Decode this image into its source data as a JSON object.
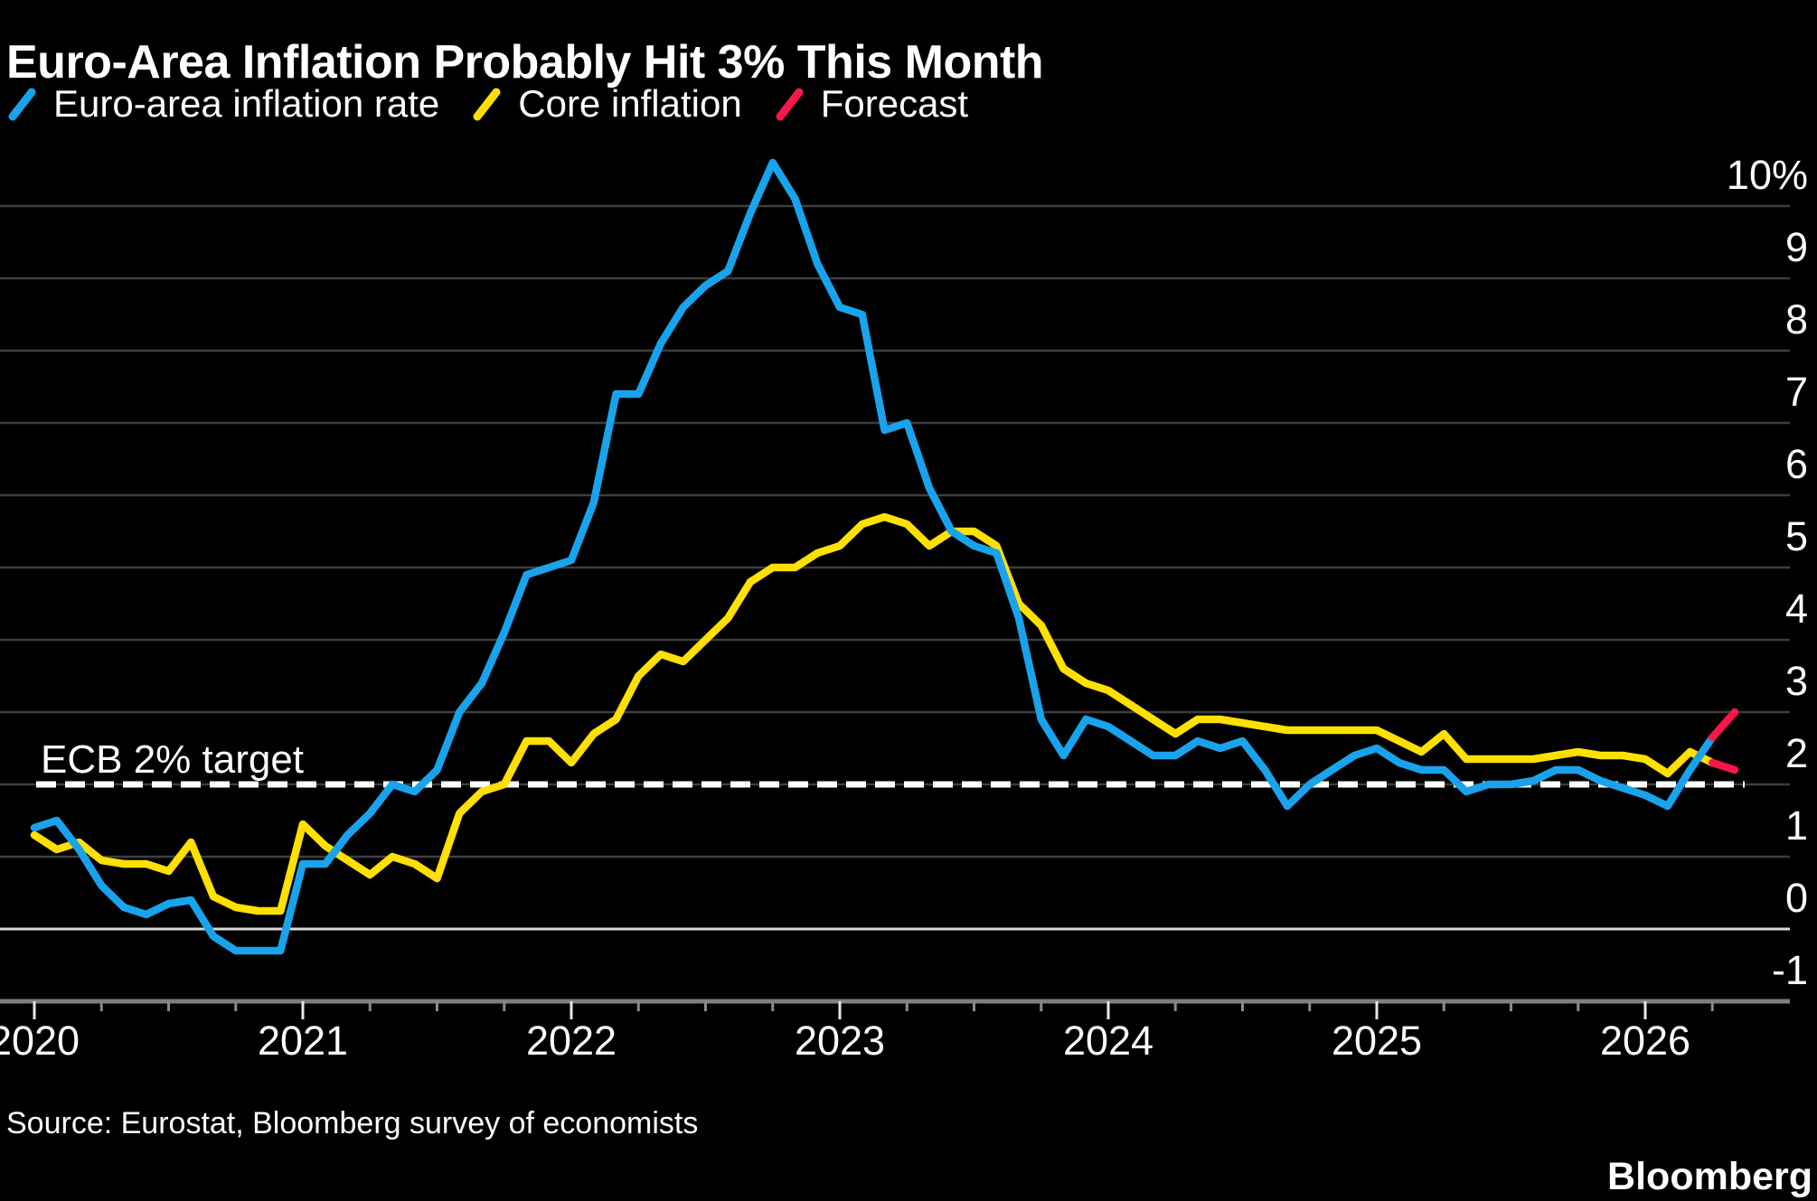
{
  "title": "Euro-Area Inflation Probably Hit 3% This Month",
  "legend": {
    "items": [
      {
        "label": "Euro-area inflation rate",
        "color": "#18a3ec"
      },
      {
        "label": "Core inflation",
        "color": "#ffe000"
      },
      {
        "label": "Forecast",
        "color": "#fa1647"
      }
    ]
  },
  "annotation": {
    "target_label": "ECB 2% target"
  },
  "source_note": "Source: Eurostat, Bloomberg survey of economists",
  "brand": "Bloomberg",
  "colors": {
    "background": "#000000",
    "headline_line": "#18a3ec",
    "core_line": "#ffe000",
    "forecast_line": "#fa1647",
    "gridline": "#3e3e3e",
    "zero_line": "#d9d9d9",
    "axis_line": "#7f7f7f",
    "target_dash": "#ffffff",
    "major_tick": "#e8e8e8",
    "minor_tick": "#8a8a8a",
    "text": "#ffffff"
  },
  "chart_data": {
    "type": "line",
    "title": "Euro-Area Inflation Probably Hit 3% This Month",
    "x_unit": "month",
    "x_start": "2020-01",
    "x_end": "2026-05",
    "year_labels": [
      "2020",
      "2021",
      "2022",
      "2023",
      "2024",
      "2025",
      "2026"
    ],
    "x_minor_tick_every_months": 3,
    "x_major_tick_every_months": 12,
    "ylim": [
      -1,
      10
    ],
    "grid": true,
    "legend_position": "top-left",
    "y_ticks": [
      {
        "value": 10,
        "label": "10%"
      },
      {
        "value": 9,
        "label": "9"
      },
      {
        "value": 8,
        "label": "8"
      },
      {
        "value": 7,
        "label": "7"
      },
      {
        "value": 6,
        "label": "6"
      },
      {
        "value": 5,
        "label": "5"
      },
      {
        "value": 4,
        "label": "4"
      },
      {
        "value": 3,
        "label": "3"
      },
      {
        "value": 2,
        "label": "2"
      },
      {
        "value": 1,
        "label": "1"
      },
      {
        "value": 0,
        "label": "0"
      },
      {
        "value": -1,
        "label": "-1"
      }
    ],
    "target_line": {
      "value": 2,
      "label": "ECB 2% target"
    },
    "series": [
      {
        "id": "headline",
        "name": "Euro-area inflation rate",
        "color": "#18a3ec",
        "start": "2020-01",
        "values": [
          1.4,
          1.5,
          1.1,
          0.6,
          0.3,
          0.2,
          0.35,
          0.4,
          -0.1,
          -0.3,
          -0.3,
          -0.3,
          0.9,
          0.9,
          1.3,
          1.6,
          2.0,
          1.9,
          2.2,
          3.0,
          3.4,
          4.1,
          4.9,
          5.0,
          5.1,
          5.9,
          7.4,
          7.4,
          8.1,
          8.6,
          8.9,
          9.1,
          9.9,
          10.6,
          10.1,
          9.2,
          8.6,
          8.5,
          6.9,
          7.0,
          6.1,
          5.5,
          5.3,
          5.2,
          4.3,
          2.9,
          2.4,
          2.9,
          2.8,
          2.6,
          2.4,
          2.4,
          2.6,
          2.5,
          2.6,
          2.2,
          1.7,
          2.0,
          2.2,
          2.4,
          2.5,
          2.3,
          2.2,
          2.2,
          1.9,
          2.0,
          2.0,
          2.05,
          2.2,
          2.2,
          2.05,
          1.95,
          1.85,
          1.7,
          2.2,
          2.65
        ]
      },
      {
        "id": "core",
        "name": "Core inflation",
        "color": "#ffe000",
        "start": "2020-01",
        "values": [
          1.3,
          1.1,
          1.2,
          0.95,
          0.9,
          0.9,
          0.8,
          1.2,
          0.45,
          0.3,
          0.25,
          0.25,
          1.45,
          1.15,
          0.95,
          0.75,
          1.0,
          0.9,
          0.7,
          1.6,
          1.9,
          2.0,
          2.6,
          2.6,
          2.3,
          2.7,
          2.9,
          3.5,
          3.8,
          3.7,
          4.0,
          4.3,
          4.8,
          5.0,
          5.0,
          5.2,
          5.3,
          5.6,
          5.7,
          5.6,
          5.3,
          5.5,
          5.5,
          5.3,
          4.5,
          4.2,
          3.6,
          3.4,
          3.3,
          3.1,
          2.9,
          2.7,
          2.9,
          2.9,
          2.85,
          2.8,
          2.75,
          2.75,
          2.75,
          2.75,
          2.75,
          2.6,
          2.45,
          2.7,
          2.35,
          2.35,
          2.35,
          2.35,
          2.4,
          2.45,
          2.4,
          2.4,
          2.35,
          2.15,
          2.45,
          2.3
        ]
      },
      {
        "id": "headline-forecast",
        "name": "Forecast",
        "color": "#fa1647",
        "start": "2026-04",
        "values": [
          2.65,
          3.0
        ]
      },
      {
        "id": "core-forecast",
        "name": "Forecast",
        "color": "#fa1647",
        "start": "2026-04",
        "values": [
          2.3,
          2.2
        ]
      }
    ]
  }
}
